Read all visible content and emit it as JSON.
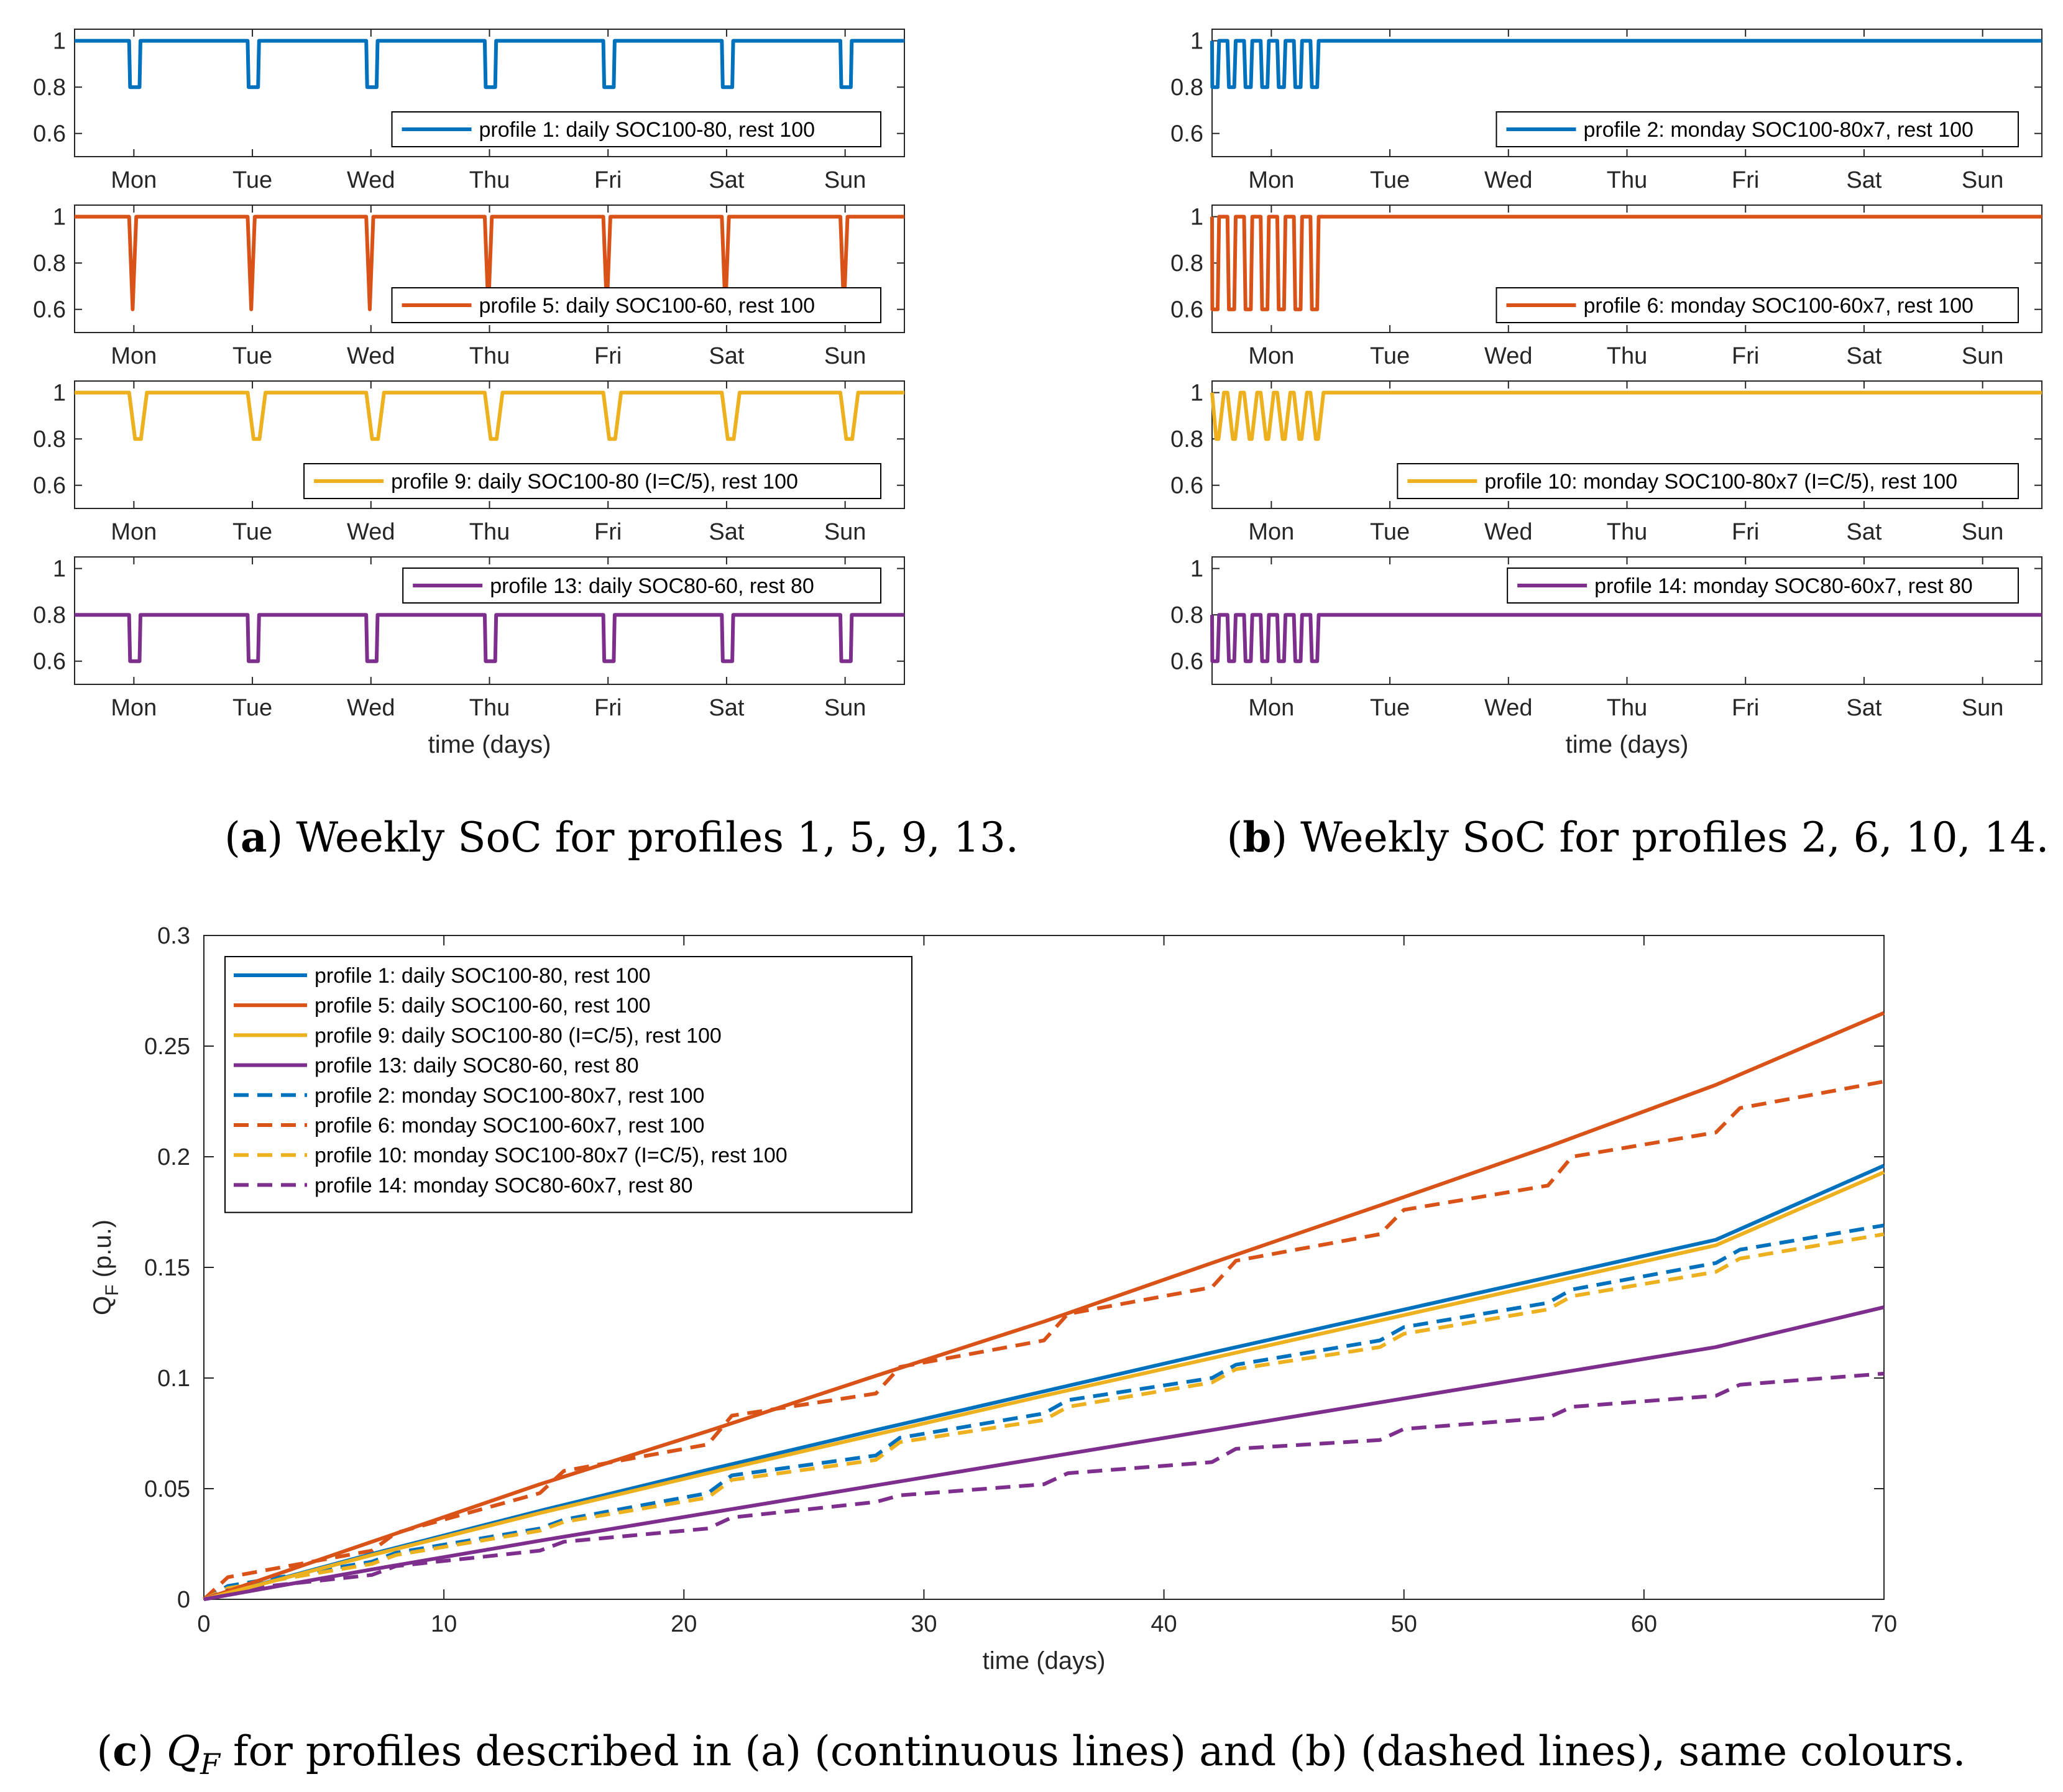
{
  "colors": {
    "blue": "#0072BD",
    "orange": "#D95319",
    "yellow": "#EDB120",
    "purple": "#7E2F8E",
    "axis": "#262626"
  },
  "captions": {
    "a_label": "a",
    "a_text": " Weekly SoC for profiles 1, 5, 9, 13.",
    "b_label": "b",
    "b_text": " Weekly SoC for profiles 2, 6, 10, 14.",
    "c_label": "c",
    "c_pre": " ",
    "c_sym": "Q",
    "c_sub": "F",
    "c_text": " for profiles described in (a) (continuous lines) and (b) (dashed lines), same colours."
  },
  "chart_data": [
    {
      "type": "line",
      "id": "a1",
      "days": [
        "Mon",
        "Tue",
        "Wed",
        "Thu",
        "Fri",
        "Sat",
        "Sun"
      ],
      "ylim": [
        0.5,
        1.05
      ],
      "yticks": [
        0.6,
        0.8,
        1
      ],
      "ytick_labels": [
        "0.6",
        "0.8",
        "1"
      ],
      "pattern": "daily",
      "high": 1.0,
      "low": 0.8,
      "shape": "flat",
      "color": "blue",
      "legend": "profile 1: daily SOC100-80, rest 100",
      "xlabel": ""
    },
    {
      "type": "line",
      "id": "a2",
      "days": [
        "Mon",
        "Tue",
        "Wed",
        "Thu",
        "Fri",
        "Sat",
        "Sun"
      ],
      "ylim": [
        0.5,
        1.05
      ],
      "yticks": [
        0.6,
        0.8,
        1
      ],
      "ytick_labels": [
        "0.6",
        "0.8",
        "1"
      ],
      "pattern": "daily",
      "high": 1.0,
      "low": 0.6,
      "shape": "sharp",
      "color": "orange",
      "legend": "profile 5: daily SOC100-60, rest 100",
      "xlabel": ""
    },
    {
      "type": "line",
      "id": "a3",
      "days": [
        "Mon",
        "Tue",
        "Wed",
        "Thu",
        "Fri",
        "Sat",
        "Sun"
      ],
      "ylim": [
        0.5,
        1.05
      ],
      "yticks": [
        0.6,
        0.8,
        1
      ],
      "ytick_labels": [
        "0.6",
        "0.8",
        "1"
      ],
      "pattern": "daily",
      "high": 1.0,
      "low": 0.8,
      "shape": "slow",
      "color": "yellow",
      "legend": "profile 9: daily SOC100-80 (I=C/5), rest 100",
      "xlabel": ""
    },
    {
      "type": "line",
      "id": "a4",
      "days": [
        "Mon",
        "Tue",
        "Wed",
        "Thu",
        "Fri",
        "Sat",
        "Sun"
      ],
      "ylim": [
        0.5,
        1.05
      ],
      "yticks": [
        0.6,
        0.8,
        1
      ],
      "ytick_labels": [
        "0.6",
        "0.8",
        "1"
      ],
      "pattern": "daily",
      "high": 0.8,
      "low": 0.6,
      "shape": "flat",
      "color": "purple",
      "legend": "profile 13: daily SOC80-60, rest 80",
      "xlabel": "time (days)"
    },
    {
      "type": "line",
      "id": "b1",
      "days": [
        "Mon",
        "Tue",
        "Wed",
        "Thu",
        "Fri",
        "Sat",
        "Sun"
      ],
      "ylim": [
        0.5,
        1.05
      ],
      "yticks": [
        0.6,
        0.8,
        1
      ],
      "ytick_labels": [
        "0.6",
        "0.8",
        "1"
      ],
      "pattern": "monday",
      "high": 1.0,
      "low": 0.8,
      "shape": "flat",
      "color": "blue",
      "legend": "profile 2: monday SOC100-80x7, rest 100",
      "xlabel": ""
    },
    {
      "type": "line",
      "id": "b2",
      "days": [
        "Mon",
        "Tue",
        "Wed",
        "Thu",
        "Fri",
        "Sat",
        "Sun"
      ],
      "ylim": [
        0.5,
        1.05
      ],
      "yticks": [
        0.6,
        0.8,
        1
      ],
      "ytick_labels": [
        "0.6",
        "0.8",
        "1"
      ],
      "pattern": "monday",
      "high": 1.0,
      "low": 0.6,
      "shape": "flat",
      "color": "orange",
      "legend": "profile 6: monday SOC100-60x7, rest 100",
      "xlabel": ""
    },
    {
      "type": "line",
      "id": "b3",
      "days": [
        "Mon",
        "Tue",
        "Wed",
        "Thu",
        "Fri",
        "Sat",
        "Sun"
      ],
      "ylim": [
        0.5,
        1.05
      ],
      "yticks": [
        0.6,
        0.8,
        1
      ],
      "ytick_labels": [
        "0.6",
        "0.8",
        "1"
      ],
      "pattern": "monday",
      "high": 1.0,
      "low": 0.8,
      "shape": "slow",
      "color": "yellow",
      "legend": "profile 10: monday SOC100-80x7 (I=C/5), rest 100",
      "xlabel": ""
    },
    {
      "type": "line",
      "id": "b4",
      "days": [
        "Mon",
        "Tue",
        "Wed",
        "Thu",
        "Fri",
        "Sat",
        "Sun"
      ],
      "ylim": [
        0.5,
        1.05
      ],
      "yticks": [
        0.6,
        0.8,
        1
      ],
      "ytick_labels": [
        "0.6",
        "0.8",
        "1"
      ],
      "pattern": "monday",
      "high": 0.8,
      "low": 0.6,
      "shape": "flat",
      "color": "purple",
      "legend": "profile 14: monday SOC80-60x7, rest 80",
      "xlabel": "time (days)"
    },
    {
      "type": "line",
      "id": "c",
      "title": "",
      "xlabel": "time (days)",
      "ylabel_main": "Q",
      "ylabel_sub": "F",
      "ylabel_unit": " (p.u.)",
      "xlim": [
        0,
        70
      ],
      "ylim": [
        0,
        0.3
      ],
      "xticks": [
        0,
        10,
        20,
        30,
        40,
        50,
        60,
        70
      ],
      "xtick_labels": [
        "0",
        "10",
        "20",
        "30",
        "40",
        "50",
        "60",
        "70"
      ],
      "yticks": [
        0,
        0.05,
        0.1,
        0.15,
        0.2,
        0.25,
        0.3
      ],
      "ytick_labels": [
        "0",
        "0.05",
        "0.1",
        "0.15",
        "0.2",
        "0.25",
        "0.3"
      ],
      "legend_position": "top-left",
      "series": [
        {
          "name": "profile 1: daily SOC100-80, rest 100",
          "color": "blue",
          "dash": false,
          "x": [
            0,
            7,
            14,
            21,
            28,
            35,
            42,
            49,
            56,
            63,
            70
          ],
          "y": [
            0,
            0.0205,
            0.04,
            0.0585,
            0.0765,
            0.094,
            0.1115,
            0.1285,
            0.1455,
            0.1625,
            0.196
          ]
        },
        {
          "name": "profile 5: daily SOC100-60, rest 100",
          "color": "orange",
          "dash": false,
          "x": [
            0,
            7,
            14,
            21,
            28,
            35,
            42,
            49,
            56,
            63,
            70
          ],
          "y": [
            0,
            0.026,
            0.052,
            0.076,
            0.101,
            0.1255,
            0.152,
            0.178,
            0.2045,
            0.2325,
            0.265
          ]
        },
        {
          "name": "profile 9: daily SOC100-80 (I=C/5), rest 100",
          "color": "yellow",
          "dash": false,
          "x": [
            0,
            7,
            14,
            21,
            28,
            35,
            42,
            49,
            56,
            63,
            70
          ],
          "y": [
            0,
            0.02,
            0.039,
            0.057,
            0.0745,
            0.092,
            0.109,
            0.126,
            0.143,
            0.16,
            0.193
          ]
        },
        {
          "name": "profile 13: daily SOC80-60, rest 80",
          "color": "purple",
          "dash": false,
          "x": [
            0,
            7,
            14,
            21,
            28,
            35,
            42,
            49,
            56,
            63,
            70
          ],
          "y": [
            0,
            0.0135,
            0.0265,
            0.039,
            0.0515,
            0.064,
            0.0765,
            0.089,
            0.1015,
            0.114,
            0.132
          ]
        },
        {
          "name": "profile 2: monday SOC100-80x7, rest 100",
          "color": "blue",
          "dash": true,
          "x": [
            0,
            1,
            7,
            8,
            14,
            15,
            21,
            22,
            28,
            29,
            35,
            36,
            42,
            43,
            49,
            50,
            56,
            57,
            63,
            64,
            70
          ],
          "y": [
            0,
            0.006,
            0.017,
            0.021,
            0.032,
            0.036,
            0.048,
            0.056,
            0.065,
            0.073,
            0.084,
            0.09,
            0.1,
            0.106,
            0.117,
            0.123,
            0.134,
            0.14,
            0.152,
            0.158,
            0.169
          ]
        },
        {
          "name": "profile 6: monday SOC100-60x7, rest 100",
          "color": "orange",
          "dash": true,
          "x": [
            0,
            1,
            7,
            8,
            14,
            15,
            21,
            22,
            28,
            29,
            35,
            36,
            42,
            43,
            49,
            50,
            56,
            57,
            63,
            64,
            70
          ],
          "y": [
            0,
            0.01,
            0.022,
            0.03,
            0.048,
            0.058,
            0.07,
            0.083,
            0.093,
            0.105,
            0.117,
            0.129,
            0.141,
            0.153,
            0.165,
            0.176,
            0.187,
            0.2,
            0.211,
            0.222,
            0.234
          ]
        },
        {
          "name": "profile 10: monday SOC100-80x7 (I=C/5), rest 100",
          "color": "yellow",
          "dash": true,
          "x": [
            0,
            1,
            7,
            8,
            14,
            15,
            21,
            22,
            28,
            29,
            35,
            36,
            42,
            43,
            49,
            50,
            56,
            57,
            63,
            64,
            70
          ],
          "y": [
            0,
            0.005,
            0.016,
            0.02,
            0.031,
            0.035,
            0.046,
            0.054,
            0.063,
            0.071,
            0.081,
            0.087,
            0.098,
            0.104,
            0.114,
            0.12,
            0.131,
            0.137,
            0.148,
            0.154,
            0.165
          ]
        },
        {
          "name": "profile 14: monday SOC80-60x7, rest 80",
          "color": "purple",
          "dash": true,
          "x": [
            0,
            1,
            7,
            8,
            14,
            15,
            21,
            22,
            28,
            29,
            35,
            36,
            42,
            43,
            49,
            50,
            56,
            57,
            63,
            64,
            70
          ],
          "y": [
            0,
            0.004,
            0.011,
            0.015,
            0.022,
            0.026,
            0.032,
            0.037,
            0.044,
            0.047,
            0.052,
            0.057,
            0.062,
            0.068,
            0.072,
            0.077,
            0.082,
            0.087,
            0.092,
            0.097,
            0.102
          ]
        }
      ]
    }
  ]
}
